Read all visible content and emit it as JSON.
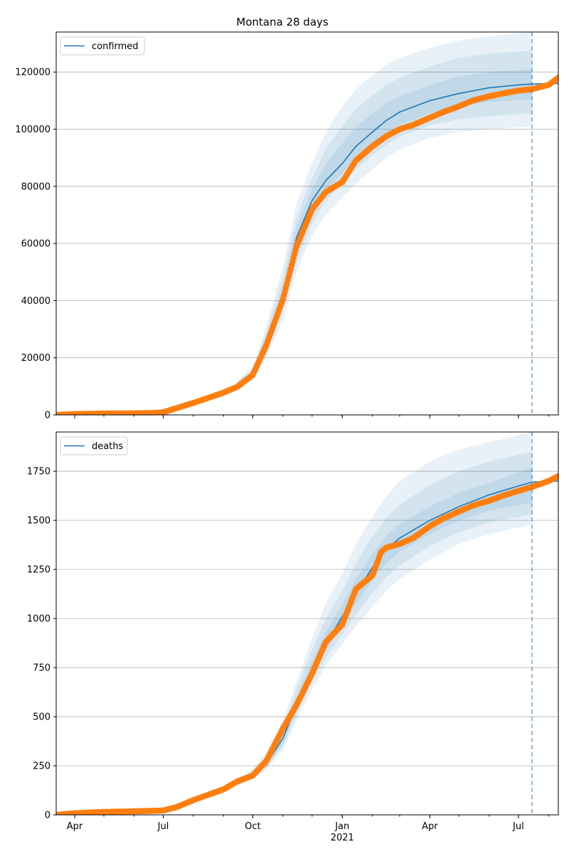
{
  "title": "Montana 28 days",
  "colors": {
    "model": "#1f77b4",
    "observed": "#ff7f0e",
    "band": "#1f77b4",
    "grid": "#b0b0b0",
    "cutoff": "#1f77b4"
  },
  "x_axis": {
    "ticks": [
      {
        "date": "2020-04-01",
        "label": "Apr"
      },
      {
        "date": "2020-07-01",
        "label": "Jul"
      },
      {
        "date": "2020-10-01",
        "label": "Oct"
      },
      {
        "date": "2021-01-01",
        "label": "Jan"
      },
      {
        "date": "2021-04-01",
        "label": "Apr"
      },
      {
        "date": "2021-07-01",
        "label": "Jul"
      }
    ],
    "year_label": "2021",
    "xlim": [
      "2020-03-13",
      "2021-08-11"
    ],
    "forecast_cutoff": "2021-07-15"
  },
  "chart_data": [
    {
      "type": "line",
      "legend": "confirmed",
      "legend_position": "top-left",
      "grid": "y",
      "ylim": [
        0,
        134000
      ],
      "yticks": [
        0,
        20000,
        40000,
        60000,
        80000,
        100000,
        120000
      ],
      "model": {
        "x": [
          "2020-03-13",
          "2020-05-01",
          "2020-06-01",
          "2020-07-01",
          "2020-07-15",
          "2020-08-01",
          "2020-08-15",
          "2020-09-01",
          "2020-09-15",
          "2020-10-01",
          "2020-10-15",
          "2020-11-01",
          "2020-11-15",
          "2020-12-01",
          "2020-12-15",
          "2021-01-01",
          "2021-01-15",
          "2021-02-01",
          "2021-02-15",
          "2021-03-01",
          "2021-04-01",
          "2021-05-01",
          "2021-06-01",
          "2021-07-01",
          "2021-07-15",
          "2021-08-11"
        ],
        "y": [
          0,
          300,
          500,
          900,
          2000,
          4000,
          6000,
          8500,
          10500,
          14000,
          24000,
          42000,
          62000,
          75000,
          82000,
          88000,
          94000,
          99000,
          103000,
          106000,
          110000,
          112500,
          114500,
          115500,
          115800,
          116000
        ]
      },
      "bands": [
        {
          "x": [
            "2020-09-15",
            "2020-10-01",
            "2020-10-15",
            "2020-11-01",
            "2020-11-15",
            "2020-12-01",
            "2020-12-15",
            "2021-01-01",
            "2021-01-15",
            "2021-02-01",
            "2021-02-15",
            "2021-03-01",
            "2021-04-01",
            "2021-05-01",
            "2021-06-01",
            "2021-07-15"
          ],
          "lower": [
            9500,
            12000,
            20000,
            33000,
            50000,
            63000,
            70000,
            76000,
            81000,
            86000,
            90000,
            93000,
            97000,
            99000,
            100000,
            101000
          ],
          "upper": [
            12000,
            17000,
            31000,
            52000,
            74000,
            88000,
            99000,
            108000,
            114000,
            119000,
            122500,
            125000,
            128500,
            131000,
            132500,
            134000
          ]
        },
        {
          "x": [
            "2020-09-15",
            "2020-10-01",
            "2020-10-15",
            "2020-11-01",
            "2020-11-15",
            "2020-12-01",
            "2020-12-15",
            "2021-01-01",
            "2021-01-15",
            "2021-02-01",
            "2021-02-15",
            "2021-03-01",
            "2021-04-01",
            "2021-05-01",
            "2021-06-01",
            "2021-07-15"
          ],
          "lower": [
            10000,
            13000,
            21500,
            36000,
            53500,
            67000,
            75000,
            81000,
            86000,
            91000,
            94500,
            97500,
            101500,
            103500,
            104500,
            105500
          ],
          "upper": [
            11500,
            16000,
            29000,
            48000,
            69000,
            83000,
            93000,
            101000,
            107000,
            112000,
            115500,
            118000,
            122000,
            125000,
            126500,
            127500
          ]
        },
        {
          "x": [
            "2020-09-15",
            "2020-10-01",
            "2020-10-15",
            "2020-11-01",
            "2020-11-15",
            "2020-12-01",
            "2020-12-15",
            "2021-01-01",
            "2021-01-15",
            "2021-02-01",
            "2021-02-15",
            "2021-03-01",
            "2021-04-01",
            "2021-05-01",
            "2021-06-01",
            "2021-07-15"
          ],
          "lower": [
            10300,
            13500,
            22500,
            38500,
            57000,
            71000,
            78500,
            84500,
            90000,
            95000,
            98500,
            101500,
            105500,
            108000,
            109500,
            110500
          ],
          "upper": [
            11000,
            15200,
            26500,
            45000,
            66000,
            79000,
            88000,
            95000,
            101000,
            105500,
            109000,
            111500,
            115500,
            118500,
            120000,
            121000
          ]
        }
      ],
      "observed": {
        "x": [
          "2020-03-13",
          "2020-04-01",
          "2020-05-01",
          "2020-06-01",
          "2020-06-20",
          "2020-07-01",
          "2020-07-15",
          "2020-08-01",
          "2020-08-15",
          "2020-09-01",
          "2020-09-15",
          "2020-10-01",
          "2020-10-15",
          "2020-11-01",
          "2020-11-15",
          "2020-12-01",
          "2020-12-15",
          "2021-01-01",
          "2021-01-15",
          "2021-02-01",
          "2021-02-15",
          "2021-03-01",
          "2021-03-15",
          "2021-04-01",
          "2021-04-15",
          "2021-05-01",
          "2021-05-15",
          "2021-06-01",
          "2021-06-15",
          "2021-07-01",
          "2021-07-15",
          "2021-08-01",
          "2021-08-11"
        ],
        "y": [
          0,
          300,
          480,
          550,
          650,
          900,
          2400,
          4200,
          5800,
          7800,
          9800,
          14000,
          24500,
          40500,
          59000,
          72000,
          78000,
          81500,
          89000,
          94000,
          97500,
          100000,
          101500,
          104000,
          106000,
          108000,
          110000,
          111500,
          112500,
          113500,
          114000,
          115500,
          118000
        ]
      }
    },
    {
      "type": "line",
      "legend": "deaths",
      "legend_position": "top-left",
      "grid": "y",
      "ylim": [
        0,
        1950
      ],
      "yticks": [
        0,
        250,
        500,
        750,
        1000,
        1250,
        1500,
        1750
      ],
      "model": {
        "x": [
          "2020-03-13",
          "2020-05-01",
          "2020-06-01",
          "2020-07-01",
          "2020-07-15",
          "2020-08-01",
          "2020-08-15",
          "2020-09-01",
          "2020-09-15",
          "2020-10-01",
          "2020-10-15",
          "2020-11-01",
          "2020-11-15",
          "2020-12-01",
          "2020-12-15",
          "2021-01-01",
          "2021-01-15",
          "2021-02-01",
          "2021-02-15",
          "2021-03-01",
          "2021-04-01",
          "2021-05-01",
          "2021-06-01",
          "2021-07-01",
          "2021-07-15",
          "2021-08-11"
        ],
        "y": [
          0,
          12,
          17,
          20,
          35,
          70,
          100,
          130,
          160,
          200,
          260,
          390,
          560,
          740,
          870,
          1010,
          1130,
          1260,
          1350,
          1410,
          1500,
          1570,
          1630,
          1675,
          1695,
          1700
        ]
      },
      "bands": [
        {
          "x": [
            "2020-09-15",
            "2020-10-01",
            "2020-10-15",
            "2020-11-01",
            "2020-11-15",
            "2020-12-01",
            "2020-12-15",
            "2021-01-01",
            "2021-01-15",
            "2021-02-01",
            "2021-02-15",
            "2021-03-01",
            "2021-04-01",
            "2021-05-01",
            "2021-06-01",
            "2021-07-15"
          ],
          "lower": [
            145,
            185,
            230,
            330,
            480,
            640,
            760,
            870,
            960,
            1060,
            1140,
            1200,
            1300,
            1380,
            1430,
            1480
          ],
          "upper": [
            180,
            235,
            320,
            480,
            680,
            900,
            1080,
            1230,
            1380,
            1520,
            1620,
            1700,
            1800,
            1860,
            1900,
            1950
          ]
        },
        {
          "x": [
            "2020-09-15",
            "2020-10-01",
            "2020-10-15",
            "2020-11-01",
            "2020-11-15",
            "2020-12-01",
            "2020-12-15",
            "2021-01-01",
            "2021-01-15",
            "2021-02-01",
            "2021-02-15",
            "2021-03-01",
            "2021-04-01",
            "2021-05-01",
            "2021-06-01",
            "2021-07-15"
          ],
          "lower": [
            150,
            190,
            240,
            350,
            510,
            680,
            800,
            920,
            1020,
            1130,
            1210,
            1270,
            1370,
            1440,
            1490,
            1530
          ],
          "upper": [
            172,
            225,
            300,
            450,
            640,
            840,
            1000,
            1140,
            1280,
            1420,
            1510,
            1580,
            1680,
            1750,
            1800,
            1850
          ]
        },
        {
          "x": [
            "2020-09-15",
            "2020-10-01",
            "2020-10-15",
            "2020-11-01",
            "2020-11-15",
            "2020-12-01",
            "2020-12-15",
            "2021-01-01",
            "2021-01-15",
            "2021-02-01",
            "2021-02-15",
            "2021-03-01",
            "2021-04-01",
            "2021-05-01",
            "2021-06-01",
            "2021-07-15"
          ],
          "lower": [
            155,
            195,
            248,
            365,
            530,
            710,
            835,
            965,
            1075,
            1195,
            1280,
            1340,
            1430,
            1500,
            1550,
            1590
          ],
          "upper": [
            166,
            214,
            285,
            425,
            600,
            780,
            930,
            1070,
            1200,
            1330,
            1420,
            1480,
            1570,
            1640,
            1690,
            1770
          ]
        }
      ],
      "observed": {
        "x": [
          "2020-03-13",
          "2020-04-01",
          "2020-05-01",
          "2020-06-01",
          "2020-07-01",
          "2020-07-15",
          "2020-08-01",
          "2020-08-15",
          "2020-09-01",
          "2020-09-15",
          "2020-10-01",
          "2020-10-15",
          "2020-11-01",
          "2020-11-15",
          "2020-12-01",
          "2020-12-15",
          "2021-01-01",
          "2021-01-15",
          "2021-02-01",
          "2021-02-10",
          "2021-02-15",
          "2021-03-01",
          "2021-03-15",
          "2021-04-01",
          "2021-04-15",
          "2021-05-01",
          "2021-05-15",
          "2021-06-01",
          "2021-06-15",
          "2021-07-01",
          "2021-07-15",
          "2021-08-01",
          "2021-08-11"
        ],
        "y": [
          0,
          8,
          15,
          18,
          22,
          40,
          75,
          100,
          130,
          170,
          200,
          275,
          440,
          560,
          720,
          880,
          970,
          1150,
          1220,
          1340,
          1360,
          1380,
          1410,
          1470,
          1510,
          1545,
          1575,
          1600,
          1625,
          1650,
          1670,
          1700,
          1725
        ]
      }
    }
  ]
}
